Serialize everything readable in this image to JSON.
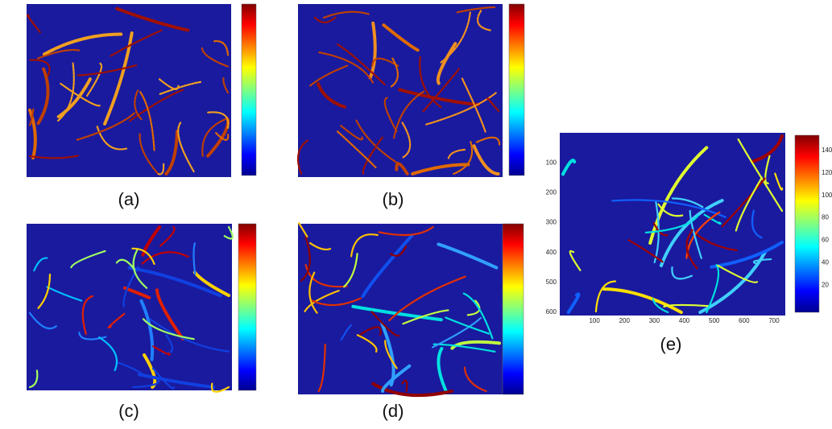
{
  "panels": [
    {
      "caption": "(a)"
    },
    {
      "caption": "(b)"
    },
    {
      "caption": "(c)"
    },
    {
      "caption": "(d)"
    },
    {
      "caption": "(e)",
      "yticks": [
        100,
        200,
        300,
        400,
        500,
        600
      ],
      "xticks": [
        100,
        200,
        300,
        400,
        500,
        600,
        700
      ],
      "colorbar_ticks": [
        20,
        40,
        60,
        80,
        100,
        120,
        140
      ]
    }
  ]
}
